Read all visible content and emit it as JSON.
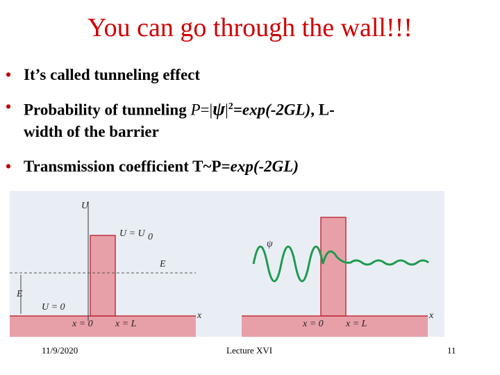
{
  "title": "You can go through the wall!!!",
  "bullets": [
    [
      "It’s called tunneling effect"
    ],
    [
      "Probability of tunneling ",
      "P",
      "=|",
      "ψ",
      "|",
      "2",
      "=exp(-2GL)",
      ", L-",
      "width of the barrier"
    ],
    [
      "Transmission coefficient T~P=",
      "exp(-2GL)"
    ]
  ],
  "figure": {
    "left": {
      "u_axis": "U",
      "barrier_label": "U = U",
      "barrier_sub": "0",
      "energy_line": "E",
      "energy_height": "E",
      "floor_label": "U = 0",
      "x0": "x = 0",
      "xL": "x = L",
      "x_axis": "x"
    },
    "right": {
      "psi": "ψ",
      "x0": "x = 0",
      "xL": "x = L",
      "x_axis": "x"
    }
  },
  "footer": {
    "date": "11/9/2020",
    "center": "Lecture XVI",
    "page": "11"
  }
}
